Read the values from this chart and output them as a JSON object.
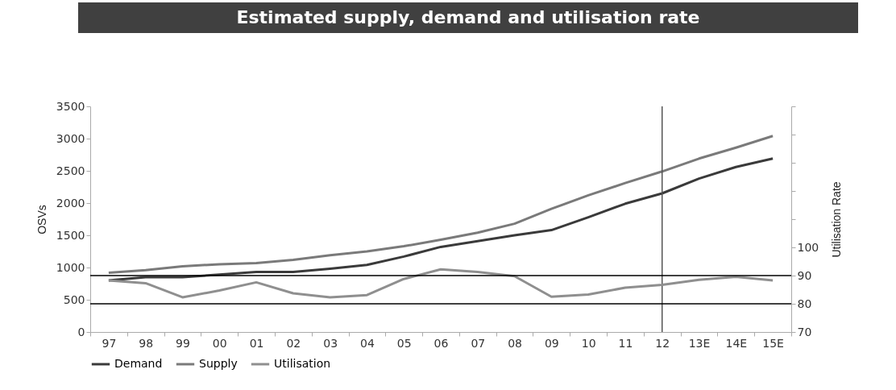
{
  "chart_data": {
    "type": "line",
    "title": "Estimated supply, demand and utilisation rate",
    "ylabel": "OSVs",
    "y2label": "Utilisation Rate",
    "categories": [
      "97",
      "98",
      "99",
      "00",
      "01",
      "02",
      "03",
      "04",
      "05",
      "06",
      "07",
      "08",
      "09",
      "10",
      "11",
      "12",
      "13E",
      "14E",
      "15E"
    ],
    "series": [
      {
        "name": "Demand",
        "color": "#3a3a3a",
        "values": [
          800,
          850,
          850,
          890,
          930,
          930,
          980,
          1040,
          1170,
          1320,
          1410,
          1500,
          1580,
          1780,
          1990,
          2150,
          2380,
          2560,
          2690
        ]
      },
      {
        "name": "Supply",
        "color": "#7a7a7a",
        "values": [
          920,
          960,
          1020,
          1050,
          1070,
          1120,
          1190,
          1250,
          1330,
          1430,
          1540,
          1680,
          1910,
          2120,
          2310,
          2490,
          2690,
          2860,
          3040
        ]
      },
      {
        "name": "Utilisation",
        "color": "#8f8f8f",
        "axis": "y2",
        "values": [
          88.3,
          87.3,
          82.3,
          84.7,
          87.6,
          83.7,
          82.3,
          83.1,
          88.8,
          92.2,
          91.3,
          89.8,
          82.5,
          83.3,
          85.7,
          86.7,
          88.5,
          89.6,
          88.3
        ]
      }
    ],
    "ylim": [
      0,
      3500
    ],
    "yticks": [
      0,
      500,
      1000,
      1500,
      2000,
      2500,
      3000,
      3500
    ],
    "y2lim": [
      70,
      150
    ],
    "y2ticks": [
      70,
      80,
      90,
      100,
      {
        "value": 110,
        "label": null
      },
      {
        "value": 120,
        "label": null
      },
      {
        "value": 130,
        "label": null
      },
      {
        "value": 140,
        "label": null
      },
      {
        "value": 150,
        "label": null
      }
    ],
    "ref_lines": [
      {
        "axis": "y2",
        "value": 90,
        "color": "#000000"
      },
      {
        "axis": "y2",
        "value": 80,
        "color": "#000000"
      },
      {
        "axis": "x",
        "value": "12",
        "color": "#555555"
      }
    ],
    "grid": false,
    "legend": "bottom",
    "marker": "none",
    "line_style": "solid"
  }
}
